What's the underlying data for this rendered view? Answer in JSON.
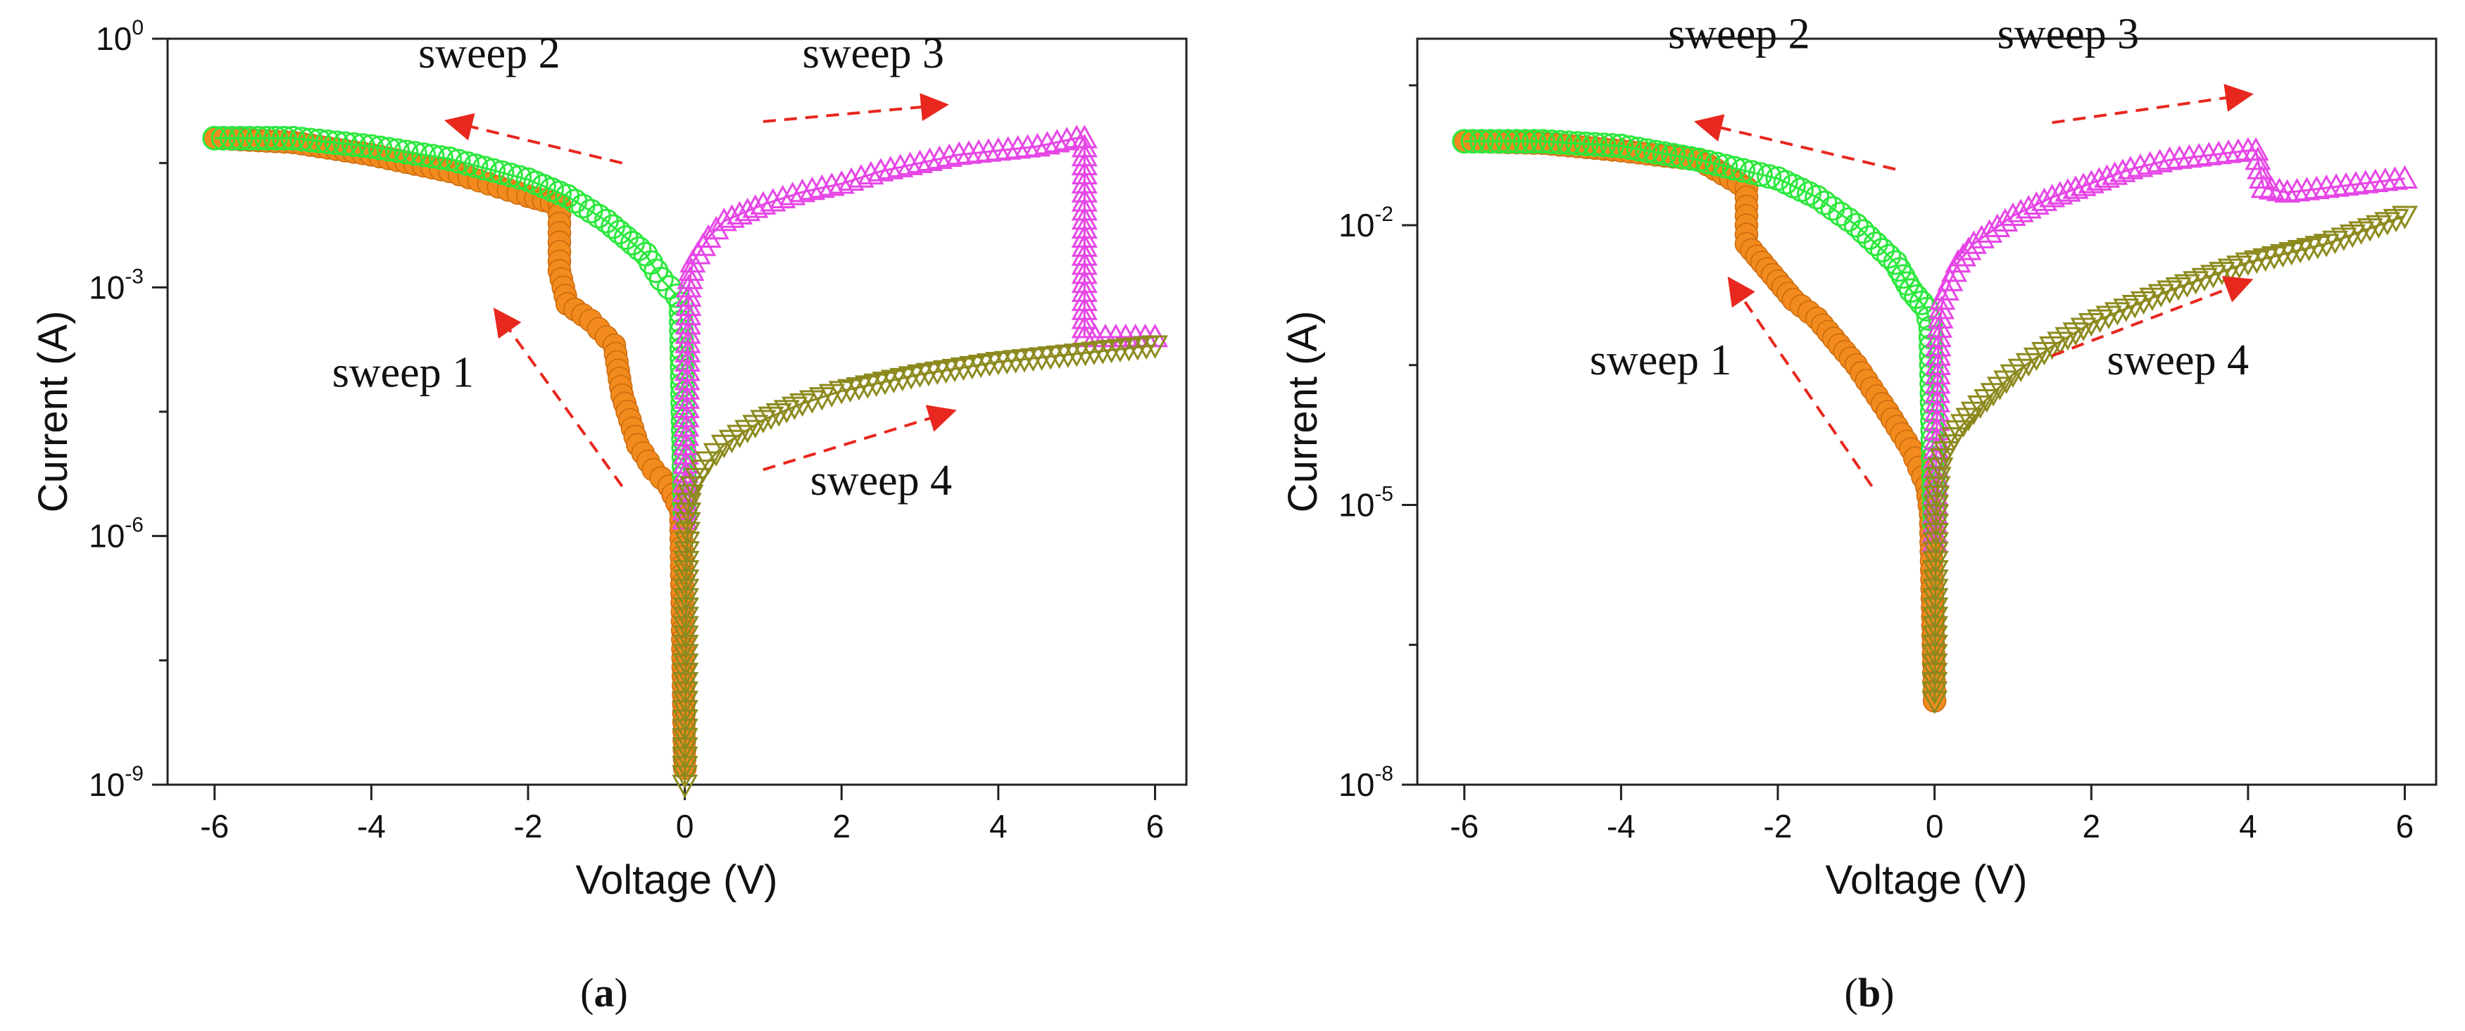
{
  "panels_caption": [
    "a",
    "b"
  ],
  "colors": {
    "sweep1": "#F28A1E",
    "sweep2": "#2BE83C",
    "sweep3": "#E646E6",
    "sweep4": "#8C8A1E",
    "arrow": "#E8271E",
    "axis": "#222222"
  },
  "chart_data": [
    {
      "type": "scatter",
      "panel": "a",
      "xlabel": "Voltage (V)",
      "ylabel": "Current (A)",
      "xlim": [
        -6.6,
        6.4
      ],
      "xticks": [
        -6,
        -4,
        -2,
        0,
        2,
        4,
        6
      ],
      "ylim_log10": [
        -9,
        0
      ],
      "ytick_exponents": [
        0,
        -3,
        -6,
        -9
      ],
      "yticks_minor": [
        -1.5,
        -4.5,
        -7.5
      ],
      "series": [
        {
          "name": "sweep 1",
          "marker": "filled-circle",
          "x": [
            -6,
            -5,
            -4,
            -3,
            -2.5,
            -2,
            -1.6,
            -1.6,
            -1.5,
            -1.2,
            -1.0,
            -0.9,
            -0.8,
            -0.6,
            -0.4,
            -0.2,
            -0.1,
            -0.05,
            0
          ],
          "log10_y": [
            -1.2,
            -1.25,
            -1.4,
            -1.6,
            -1.75,
            -1.9,
            -2.0,
            -2.8,
            -3.2,
            -3.4,
            -3.6,
            -3.7,
            -4.3,
            -4.9,
            -5.2,
            -5.4,
            -5.6,
            -5.7,
            -8.8
          ]
        },
        {
          "name": "sweep 2",
          "marker": "open-circle",
          "x": [
            -6,
            -5,
            -4,
            -3,
            -2,
            -1.5,
            -1,
            -0.5,
            -0.3,
            -0.1,
            -0.05,
            0
          ],
          "log10_y": [
            -1.2,
            -1.2,
            -1.3,
            -1.45,
            -1.7,
            -1.9,
            -2.2,
            -2.6,
            -2.9,
            -3.1,
            -3.2,
            -5.7
          ]
        },
        {
          "name": "sweep 3",
          "marker": "open-triangle-up",
          "x": [
            0,
            0.05,
            0.1,
            0.3,
            0.5,
            1,
            1.5,
            2,
            2.5,
            3,
            3.5,
            4,
            4.5,
            5.0,
            5.1,
            5.1,
            5.5,
            6
          ],
          "log10_y": [
            -5.8,
            -3.0,
            -2.7,
            -2.4,
            -2.2,
            -2.0,
            -1.85,
            -1.75,
            -1.6,
            -1.5,
            -1.4,
            -1.35,
            -1.3,
            -1.2,
            -1.2,
            -3.6,
            -3.6,
            -3.6
          ]
        },
        {
          "name": "sweep 4",
          "marker": "open-triangle-down",
          "x": [
            0,
            0.02,
            0.05,
            0.1,
            0.3,
            0.5,
            1,
            1.5,
            2,
            3,
            4,
            5,
            6
          ],
          "log10_y": [
            -9.0,
            -6.3,
            -5.6,
            -5.4,
            -5.1,
            -4.9,
            -4.6,
            -4.4,
            -4.25,
            -4.05,
            -3.9,
            -3.8,
            -3.7
          ]
        }
      ],
      "annotations": [
        {
          "text": "sweep 2",
          "x": -3.4,
          "log10_y": -0.35
        },
        {
          "text": "sweep 3",
          "x": 1.5,
          "log10_y": -0.35
        },
        {
          "text": "sweep 1",
          "x": -4.5,
          "log10_y": -4.2
        },
        {
          "text": "sweep 4",
          "x": 1.6,
          "log10_y": -5.5
        }
      ],
      "arrows": [
        {
          "from": [
            -0.8,
            -1.5
          ],
          "to": [
            -3.0,
            -1.0
          ]
        },
        {
          "from": [
            1.0,
            -1.0
          ],
          "to": [
            3.3,
            -0.8
          ]
        },
        {
          "from": [
            -0.8,
            -5.4
          ],
          "to": [
            -2.4,
            -3.3
          ]
        },
        {
          "from": [
            1.0,
            -5.2
          ],
          "to": [
            3.4,
            -4.5
          ]
        }
      ]
    },
    {
      "type": "scatter",
      "panel": "b",
      "xlabel": "Voltage (V)",
      "ylabel": "Current (A)",
      "xlim": [
        -6.6,
        6.4
      ],
      "xticks": [
        -6,
        -4,
        -2,
        0,
        2,
        4,
        6
      ],
      "ylim_log10": [
        -8,
        0
      ],
      "ytick_exponents": [
        -2,
        -5,
        -8
      ],
      "yticks_minor": [
        -0.5,
        -3.5,
        -6.5
      ],
      "series": [
        {
          "name": "sweep 1",
          "marker": "filled-circle",
          "x": [
            -6,
            -5,
            -4,
            -3,
            -2.6,
            -2.4,
            -2.4,
            -2.2,
            -2.0,
            -1.8,
            -1.5,
            -1.0,
            -0.6,
            -0.3,
            -0.1,
            -0.05,
            0
          ],
          "log10_y": [
            -1.1,
            -1.12,
            -1.2,
            -1.3,
            -1.5,
            -1.6,
            -2.2,
            -2.4,
            -2.6,
            -2.8,
            -3.0,
            -3.5,
            -4.0,
            -4.4,
            -4.8,
            -5.1,
            -7.1
          ]
        },
        {
          "name": "sweep 2",
          "marker": "open-circle",
          "x": [
            -6,
            -5,
            -4,
            -3,
            -2,
            -1.5,
            -1,
            -0.5,
            -0.3,
            -0.1,
            -0.05,
            0
          ],
          "log10_y": [
            -1.1,
            -1.1,
            -1.15,
            -1.3,
            -1.5,
            -1.7,
            -2.0,
            -2.4,
            -2.7,
            -2.9,
            -3.1,
            -5.2
          ]
        },
        {
          "name": "sweep 3",
          "marker": "open-triangle-up",
          "x": [
            0,
            0.05,
            0.1,
            0.3,
            0.5,
            1,
            1.5,
            2,
            2.5,
            3,
            3.5,
            4.0,
            4.1,
            4.2,
            4.5,
            5,
            5.5,
            6
          ],
          "log10_y": [
            -5.4,
            -3.2,
            -2.8,
            -2.4,
            -2.2,
            -1.9,
            -1.7,
            -1.55,
            -1.4,
            -1.3,
            -1.25,
            -1.2,
            -1.2,
            -1.6,
            -1.65,
            -1.6,
            -1.55,
            -1.5
          ]
        },
        {
          "name": "sweep 4",
          "marker": "open-triangle-down",
          "x": [
            0,
            0.02,
            0.05,
            0.1,
            0.3,
            0.5,
            1,
            1.5,
            2,
            3,
            4,
            5,
            6
          ],
          "log10_y": [
            -7.1,
            -5.0,
            -4.7,
            -4.5,
            -4.2,
            -4.0,
            -3.6,
            -3.3,
            -3.05,
            -2.7,
            -2.4,
            -2.2,
            -1.9
          ]
        }
      ],
      "annotations": [
        {
          "text": "sweep 2",
          "x": -3.4,
          "log10_y": -0.1
        },
        {
          "text": "sweep 3",
          "x": 0.8,
          "log10_y": -0.1
        },
        {
          "text": "sweep 1",
          "x": -4.4,
          "log10_y": -3.6
        },
        {
          "text": "sweep 4",
          "x": 2.2,
          "log10_y": -3.6
        }
      ],
      "arrows": [
        {
          "from": [
            -0.5,
            -1.4
          ],
          "to": [
            -3.0,
            -0.9
          ]
        },
        {
          "from": [
            1.5,
            -0.9
          ],
          "to": [
            4.0,
            -0.6
          ]
        },
        {
          "from": [
            -0.8,
            -4.8
          ],
          "to": [
            -2.6,
            -2.6
          ]
        },
        {
          "from": [
            1.5,
            -3.4
          ],
          "to": [
            4.0,
            -2.6
          ]
        }
      ]
    }
  ]
}
